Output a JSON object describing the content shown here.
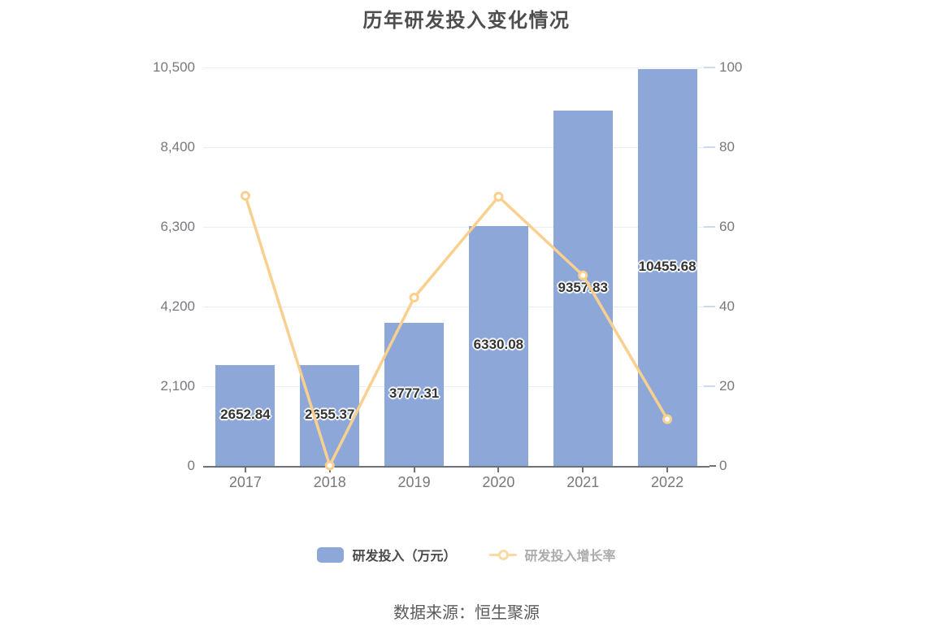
{
  "title": "历年研发投入变化情况",
  "source": "数据来源：恒生聚源",
  "legend": [
    {
      "label": "研发投入（万元）"
    },
    {
      "label": "研发投入增长率"
    }
  ],
  "chart_data": {
    "type": "bar+line combo",
    "title": "历年研发投入变化情况",
    "categories": [
      "2017",
      "2018",
      "2019",
      "2020",
      "2021",
      "2022"
    ],
    "series": [
      {
        "name": "研发投入（万元）",
        "type": "bar",
        "y_axis": "left",
        "color": "#8CA7D8",
        "values": [
          2652.84,
          2655.37,
          3777.31,
          6330.08,
          9357.83,
          10455.68
        ],
        "labels": [
          "2652.84",
          "2655.37",
          "3777.31",
          "6330.08",
          "9357.83",
          "10455.68"
        ]
      },
      {
        "name": "研发投入增长率",
        "type": "line",
        "y_axis": "right",
        "color": "#FAD08F",
        "values": [
          67.8,
          0.1,
          42.25,
          67.58,
          47.83,
          11.73
        ]
      }
    ],
    "left_axis": {
      "min": 0,
      "max": 10500,
      "tick_labels": [
        "0",
        "2,100",
        "4,200",
        "6,300",
        "8,400",
        "10,500"
      ]
    },
    "right_axis": {
      "min": 0,
      "max": 100,
      "tick_labels": [
        "0",
        "20",
        "40",
        "60",
        "80",
        "100"
      ]
    },
    "grid": "horizontal gridlines only",
    "legend_position": "bottom"
  }
}
